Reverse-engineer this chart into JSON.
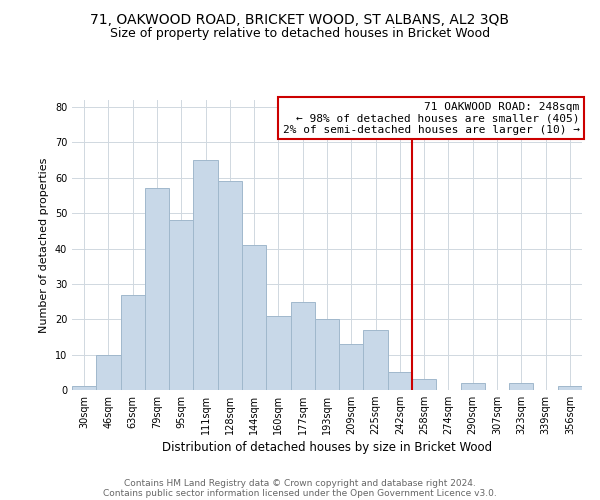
{
  "title": "71, OAKWOOD ROAD, BRICKET WOOD, ST ALBANS, AL2 3QB",
  "subtitle": "Size of property relative to detached houses in Bricket Wood",
  "xlabel": "Distribution of detached houses by size in Bricket Wood",
  "ylabel": "Number of detached properties",
  "footer_line1": "Contains HM Land Registry data © Crown copyright and database right 2024.",
  "footer_line2": "Contains public sector information licensed under the Open Government Licence v3.0.",
  "bin_labels": [
    "30sqm",
    "46sqm",
    "63sqm",
    "79sqm",
    "95sqm",
    "111sqm",
    "128sqm",
    "144sqm",
    "160sqm",
    "177sqm",
    "193sqm",
    "209sqm",
    "225sqm",
    "242sqm",
    "258sqm",
    "274sqm",
    "290sqm",
    "307sqm",
    "323sqm",
    "339sqm",
    "356sqm"
  ],
  "bar_values": [
    1,
    10,
    27,
    57,
    48,
    65,
    59,
    41,
    21,
    25,
    20,
    13,
    17,
    5,
    3,
    0,
    2,
    0,
    2,
    0,
    1
  ],
  "bar_color": "#c8d8e8",
  "bar_edge_color": "#a0b8cc",
  "vline_x_index": 13.5,
  "vline_color": "#cc0000",
  "annotation_line1": "71 OAKWOOD ROAD: 248sqm",
  "annotation_line2": "← 98% of detached houses are smaller (405)",
  "annotation_line3": "2% of semi-detached houses are larger (10) →",
  "annotation_box_edge_color": "#cc0000",
  "annotation_box_face_color": "#ffffff",
  "ylim": [
    0,
    82
  ],
  "yticks": [
    0,
    10,
    20,
    30,
    40,
    50,
    60,
    70,
    80
  ],
  "background_color": "#ffffff",
  "grid_color": "#d0d8e0",
  "title_fontsize": 10,
  "subtitle_fontsize": 9,
  "xlabel_fontsize": 8.5,
  "ylabel_fontsize": 8,
  "tick_fontsize": 7,
  "annotation_fontsize": 8,
  "footer_fontsize": 6.5
}
